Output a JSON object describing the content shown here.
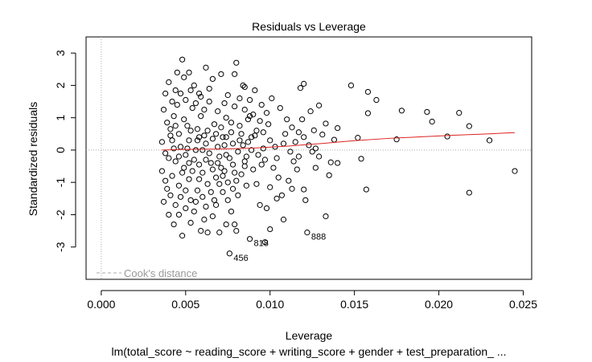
{
  "chart_data": {
    "type": "scatter",
    "title": "Residuals vs Leverage",
    "xlabel": "Leverage",
    "ylabel": "Standardized residuals",
    "subtitle": "lm(total_score ~ reading_score + writing_score + gender + test_preparation_ ...",
    "xlim": [
      -0.0009,
      0.0255
    ],
    "ylim": [
      -4.0,
      3.5
    ],
    "x_ticks": [
      0.0,
      0.005,
      0.01,
      0.015,
      0.02,
      0.025
    ],
    "x_tick_labels": [
      "0.000",
      "0.005",
      "0.010",
      "0.015",
      "0.020",
      "0.025"
    ],
    "y_ticks": [
      -3,
      -2,
      -1,
      0,
      1,
      2,
      3
    ],
    "y_tick_labels": [
      "-3",
      "-2",
      "-1",
      "0",
      "1",
      "2",
      "3"
    ],
    "grid": false,
    "legend": {
      "position": "bottom-left",
      "entries": [
        {
          "label": "Cook's distance",
          "style": "dashed",
          "color": "#aaaaaa"
        }
      ]
    },
    "reference_lines": {
      "horizontal_y": 0,
      "vertical_x": 0,
      "style": "dotted",
      "color": "#aaaaaa"
    },
    "series": [
      {
        "points": [
          [
            0.0148,
            2.0
          ],
          [
            0.0158,
            1.8
          ],
          [
            0.0163,
            1.55
          ],
          [
            0.0178,
            1.22
          ],
          [
            0.0193,
            1.18
          ],
          [
            0.0196,
            0.88
          ],
          [
            0.0212,
            1.15
          ],
          [
            0.0218,
            0.74
          ],
          [
            0.023,
            0.3
          ],
          [
            0.0245,
            -0.65
          ],
          [
            0.0218,
            -1.32
          ],
          [
            0.0205,
            0.42
          ],
          [
            0.0157,
            -1.22
          ],
          [
            0.0154,
            -0.27
          ],
          [
            0.0152,
            0.38
          ],
          [
            0.0175,
            0.33
          ],
          [
            0.0158,
            1.14
          ],
          [
            0.014,
            0.68
          ],
          [
            0.0138,
            0.32
          ],
          [
            0.0129,
            1.38
          ],
          [
            0.0133,
            0.82
          ],
          [
            0.0135,
            -0.78
          ],
          [
            0.0131,
            0.48
          ],
          [
            0.014,
            -0.4
          ],
          [
            0.0136,
            -0.38
          ],
          [
            0.012,
            2.05
          ],
          [
            0.0118,
            1.92
          ],
          [
            0.0124,
            1.2
          ],
          [
            0.0126,
            0.61
          ],
          [
            0.012,
            -1.22
          ],
          [
            0.0127,
            -0.55
          ],
          [
            0.0129,
            -0.2
          ],
          [
            0.0127,
            0.05
          ],
          [
            0.0133,
            -2.05
          ],
          [
            0.0122,
            -2.55
          ],
          [
            0.012,
            0.4
          ],
          [
            0.0117,
            -0.2
          ],
          [
            0.0115,
            0.25
          ],
          [
            0.011,
            0.95
          ],
          [
            0.0111,
            -0.95
          ],
          [
            0.0108,
            0.2
          ],
          [
            0.0105,
            -0.85
          ],
          [
            0.0102,
            -0.55
          ],
          [
            0.01,
            -2.45
          ],
          [
            0.0098,
            1.15
          ],
          [
            0.0097,
            -2.85
          ],
          [
            0.0096,
            0.55
          ],
          [
            0.0091,
            1.85
          ],
          [
            0.0088,
            -2.75
          ],
          [
            0.008,
            -2.5
          ],
          [
            0.0076,
            -3.2
          ],
          [
            0.0079,
            -2.3
          ],
          [
            0.0081,
            -1.4
          ],
          [
            0.0083,
            -0.75
          ],
          [
            0.0086,
            -0.2
          ],
          [
            0.0089,
            0.4
          ],
          [
            0.009,
            1.1
          ],
          [
            0.0092,
            -1.05
          ],
          [
            0.0094,
            -1.7
          ],
          [
            0.0095,
            -0.45
          ],
          [
            0.0099,
            0.8
          ],
          [
            0.0101,
            1.6
          ],
          [
            0.0103,
            0.1
          ],
          [
            0.0106,
            1.3
          ],
          [
            0.0107,
            -1.4
          ],
          [
            0.0112,
            -0.05
          ],
          [
            0.0113,
            0.7
          ],
          [
            0.0116,
            -0.6
          ],
          [
            0.0119,
            0.95
          ],
          [
            0.0121,
            -1.55
          ],
          [
            0.0123,
            0.15
          ],
          [
            0.0125,
            -0.05
          ],
          [
            0.008,
            2.7
          ],
          [
            0.0079,
            2.35
          ],
          [
            0.0084,
            2.0
          ],
          [
            0.0088,
            1.55
          ],
          [
            0.0075,
            1.7
          ],
          [
            0.0071,
            2.35
          ],
          [
            0.0066,
            2.2
          ],
          [
            0.0062,
            2.55
          ],
          [
            0.0058,
            1.75
          ],
          [
            0.0055,
            2.0
          ],
          [
            0.0052,
            2.4
          ],
          [
            0.0049,
            2.25
          ],
          [
            0.0048,
            2.8
          ],
          [
            0.0045,
            2.4
          ],
          [
            0.0044,
            1.85
          ],
          [
            0.0042,
            1.5
          ],
          [
            0.004,
            2.1
          ],
          [
            0.0038,
            1.75
          ],
          [
            0.0037,
            1.25
          ],
          [
            0.0039,
            0.85
          ],
          [
            0.0041,
            0.45
          ],
          [
            0.0043,
            0.05
          ],
          [
            0.0044,
            -0.35
          ],
          [
            0.0042,
            -0.8
          ],
          [
            0.0039,
            -1.2
          ],
          [
            0.0037,
            -1.6
          ],
          [
            0.004,
            -2.0
          ],
          [
            0.0043,
            -2.3
          ],
          [
            0.0046,
            -2.0
          ],
          [
            0.0048,
            -2.65
          ],
          [
            0.005,
            -1.8
          ],
          [
            0.0053,
            -2.25
          ],
          [
            0.0056,
            -1.6
          ],
          [
            0.0059,
            -2.5
          ],
          [
            0.0061,
            -2.15
          ],
          [
            0.0063,
            -2.55
          ],
          [
            0.0066,
            -2.05
          ],
          [
            0.0068,
            -1.7
          ],
          [
            0.007,
            -2.55
          ],
          [
            0.0072,
            -1.3
          ],
          [
            0.0074,
            -2.3
          ],
          [
            0.0077,
            -1.9
          ],
          [
            0.0046,
            -1.1
          ],
          [
            0.0049,
            -0.55
          ],
          [
            0.0052,
            -0.9
          ],
          [
            0.0055,
            -0.3
          ],
          [
            0.0057,
            -1.25
          ],
          [
            0.006,
            -0.7
          ],
          [
            0.0063,
            -1.05
          ],
          [
            0.0065,
            -0.4
          ],
          [
            0.0068,
            -0.85
          ],
          [
            0.007,
            -0.2
          ],
          [
            0.0073,
            -0.65
          ],
          [
            0.0075,
            -1.0
          ],
          [
            0.0078,
            -0.45
          ],
          [
            0.0046,
            0.5
          ],
          [
            0.0049,
            0.95
          ],
          [
            0.0052,
            0.3
          ],
          [
            0.0054,
            1.3
          ],
          [
            0.0057,
            0.65
          ],
          [
            0.0059,
            1.05
          ],
          [
            0.0062,
            0.2
          ],
          [
            0.0064,
            1.5
          ],
          [
            0.0067,
            0.8
          ],
          [
            0.0069,
            1.2
          ],
          [
            0.0072,
            0.4
          ],
          [
            0.0074,
            1.0
          ],
          [
            0.0077,
            0.55
          ],
          [
            0.0079,
            1.35
          ],
          [
            0.0082,
            0.75
          ],
          [
            0.0084,
            0.15
          ],
          [
            0.0087,
            0.95
          ],
          [
            0.0047,
            0.1
          ],
          [
            0.005,
            -0.15
          ],
          [
            0.0053,
            0.6
          ],
          [
            0.0056,
            0.0
          ],
          [
            0.0058,
            -0.45
          ],
          [
            0.0061,
            0.45
          ],
          [
            0.0064,
            -0.1
          ],
          [
            0.0066,
            0.35
          ],
          [
            0.0069,
            -0.4
          ],
          [
            0.0071,
            0.7
          ],
          [
            0.0073,
            0.15
          ],
          [
            0.0076,
            -0.25
          ],
          [
            0.0078,
            0.2
          ],
          [
            0.0081,
            -0.05
          ],
          [
            0.0083,
            0.5
          ],
          [
            0.0085,
            -0.35
          ],
          [
            0.0087,
            0.25
          ],
          [
            0.009,
            -0.6
          ],
          [
            0.0036,
            0.25
          ],
          [
            0.0038,
            -0.1
          ],
          [
            0.0041,
            0.65
          ],
          [
            0.0043,
            1.05
          ],
          [
            0.0045,
            1.4
          ],
          [
            0.0047,
            1.75
          ],
          [
            0.005,
            1.55
          ],
          [
            0.0053,
            1.85
          ],
          [
            0.0056,
            1.45
          ],
          [
            0.0059,
            1.65
          ],
          [
            0.0061,
            1.25
          ],
          [
            0.0064,
            1.9
          ],
          [
            0.0036,
            -0.65
          ],
          [
            0.0038,
            -0.95
          ],
          [
            0.0041,
            -1.4
          ],
          [
            0.0044,
            -1.7
          ],
          [
            0.0047,
            -1.45
          ],
          [
            0.005,
            -1.25
          ],
          [
            0.0053,
            -1.55
          ],
          [
            0.0055,
            -1.9
          ],
          [
            0.0058,
            -0.9
          ],
          [
            0.006,
            -1.45
          ],
          [
            0.0062,
            -1.75
          ],
          [
            0.0065,
            -1.3
          ],
          [
            0.0067,
            -1.55
          ],
          [
            0.007,
            -1.05
          ],
          [
            0.0072,
            -0.8
          ],
          [
            0.0075,
            -1.55
          ],
          [
            0.0078,
            -1.2
          ],
          [
            0.008,
            -0.95
          ],
          [
            0.0082,
            1.6
          ],
          [
            0.0085,
            1.25
          ],
          [
            0.0088,
            1.05
          ],
          [
            0.0091,
            0.45
          ],
          [
            0.0093,
            -0.15
          ],
          [
            0.0096,
            0.05
          ],
          [
            0.0042,
            0.3
          ],
          [
            0.0044,
            0.75
          ],
          [
            0.0046,
            -0.2
          ],
          [
            0.0048,
            -0.7
          ],
          [
            0.0051,
            0.05
          ],
          [
            0.0054,
            -0.65
          ],
          [
            0.0057,
            0.3
          ],
          [
            0.006,
            0.0
          ],
          [
            0.0063,
            0.6
          ],
          [
            0.0066,
            -0.6
          ],
          [
            0.0069,
            0.1
          ],
          [
            0.0071,
            -0.55
          ],
          [
            0.0074,
            0.4
          ],
          [
            0.0077,
            0.85
          ],
          [
            0.0079,
            -0.7
          ],
          [
            0.0082,
            0.3
          ],
          [
            0.0085,
            -0.5
          ],
          [
            0.0089,
            0.0
          ],
          [
            0.0092,
            0.6
          ],
          [
            0.0094,
            0.9
          ],
          [
            0.0097,
            -0.3
          ],
          [
            0.01,
            0.3
          ],
          [
            0.0104,
            -0.25
          ],
          [
            0.0109,
            0.5
          ],
          [
            0.0114,
            -0.35
          ],
          [
            0.0117,
            0.55
          ],
          [
            0.01,
            -1.15
          ],
          [
            0.0104,
            -1.5
          ],
          [
            0.0108,
            -2.15
          ],
          [
            0.0113,
            -1.2
          ],
          [
            0.004,
            -0.25
          ],
          [
            0.0051,
            0.75
          ],
          [
            0.0062,
            -0.3
          ],
          [
            0.0073,
            1.45
          ],
          [
            0.0085,
            1.95
          ],
          [
            0.0095,
            1.4
          ],
          [
            0.0052,
            -0.4
          ],
          [
            0.0058,
            0.4
          ],
          [
            0.0068,
            0.5
          ],
          [
            0.0074,
            -0.15
          ],
          [
            0.0086,
            -1.1
          ],
          [
            0.0098,
            -1.8
          ]
        ]
      }
    ],
    "lowess": [
      [
        0.0036,
        0.0
      ],
      [
        0.005,
        0.02
      ],
      [
        0.007,
        0.03
      ],
      [
        0.009,
        0.06
      ],
      [
        0.011,
        0.12
      ],
      [
        0.013,
        0.2
      ],
      [
        0.015,
        0.29
      ],
      [
        0.017,
        0.36
      ],
      [
        0.019,
        0.41
      ],
      [
        0.021,
        0.46
      ],
      [
        0.023,
        0.5
      ],
      [
        0.0245,
        0.54
      ]
    ],
    "lowess_color": "#dd2222",
    "annotations": [
      {
        "text": "818",
        "x": 0.0088,
        "y": -2.75
      },
      {
        "text": "888",
        "x": 0.0122,
        "y": -2.55
      },
      {
        "text": "456",
        "x": 0.0076,
        "y": -3.2
      }
    ]
  }
}
